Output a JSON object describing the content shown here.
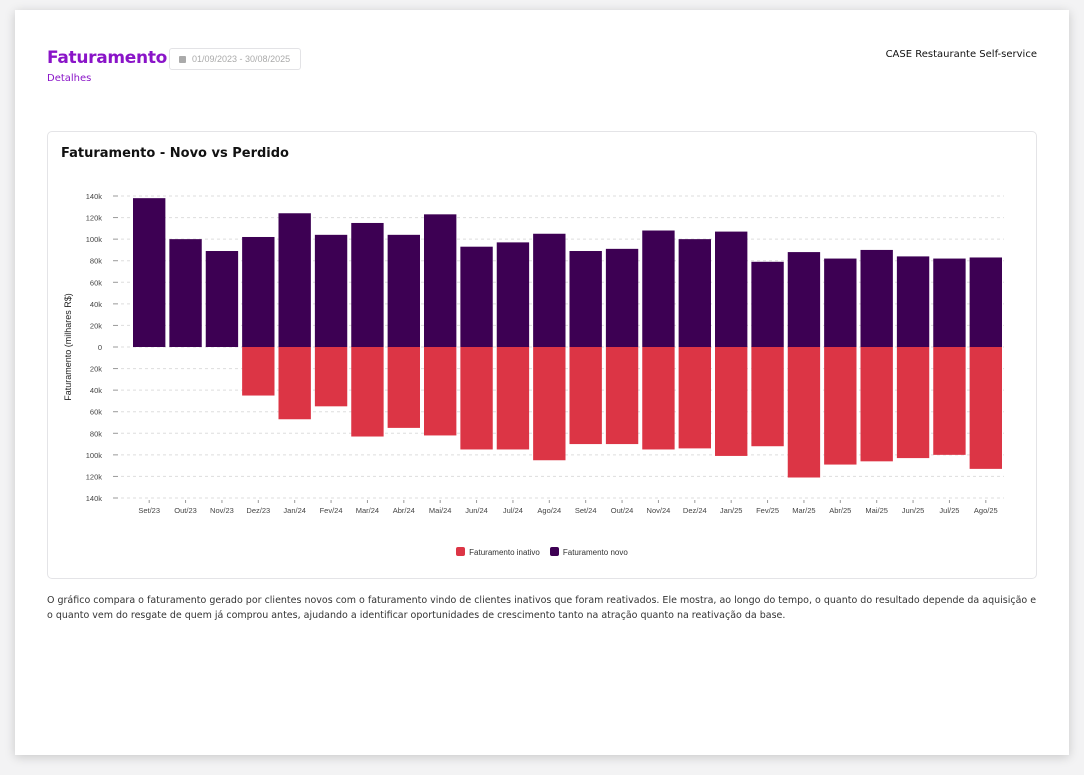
{
  "header": {
    "title": "Faturamento",
    "subtitle": "Detalhes",
    "date_range": "01/09/2023 - 30/08/2025",
    "company": "CASE Restaurante Self-service"
  },
  "card": {
    "title": "Faturamento - Novo vs Perdido"
  },
  "description": "O gráfico compara o faturamento gerado por clientes novos com o faturamento vindo de clientes inativos que foram reativados. Ele mostra, ao longo do tempo, o quanto do resultado depende da aquisição e o quanto vem do resgate de quem já comprou antes, ajudando a identificar oportunidades de crescimento tanto na atração quanto na reativação da base.",
  "chart_data": {
    "type": "bar",
    "title": "Faturamento - Novo vs Perdido",
    "xlabel": "",
    "ylabel": "Faturamento (milhares R$)",
    "ylim": [
      -140,
      140
    ],
    "yticks": [
      140,
      120,
      100,
      80,
      60,
      40,
      20,
      0,
      -20,
      -40,
      -60,
      -80,
      -100,
      -120,
      -140
    ],
    "ytick_labels": [
      "140k",
      "120k",
      "100k",
      "80k",
      "60k",
      "40k",
      "20k",
      "0",
      "20k",
      "40k",
      "60k",
      "80k",
      "100k",
      "120k",
      "140k"
    ],
    "grid": true,
    "legend_position": "bottom",
    "categories": [
      "Set/23",
      "Out/23",
      "Nov/23",
      "Dez/23",
      "Jan/24",
      "Fev/24",
      "Mar/24",
      "Abr/24",
      "Mai/24",
      "Jun/24",
      "Jul/24",
      "Ago/24",
      "Set/24",
      "Out/24",
      "Nov/24",
      "Dez/24",
      "Jan/25",
      "Fev/25",
      "Mar/25",
      "Abr/25",
      "Mai/25",
      "Jun/25",
      "Jul/25",
      "Ago/25"
    ],
    "series": [
      {
        "name": "Faturamento inativo",
        "color": "#dc3545",
        "values": [
          0,
          0,
          0,
          -45,
          -67,
          -55,
          -83,
          -75,
          -82,
          -95,
          -95,
          -105,
          -90,
          -90,
          -95,
          -94,
          -101,
          -92,
          -121,
          -109,
          -106,
          -103,
          -100,
          -113
        ]
      },
      {
        "name": "Faturamento novo",
        "color": "#3d0053",
        "values": [
          138,
          100,
          89,
          102,
          124,
          104,
          115,
          104,
          123,
          93,
          97,
          105,
          89,
          91,
          108,
          100,
          107,
          79,
          88,
          82,
          90,
          84,
          82,
          83
        ]
      }
    ]
  }
}
